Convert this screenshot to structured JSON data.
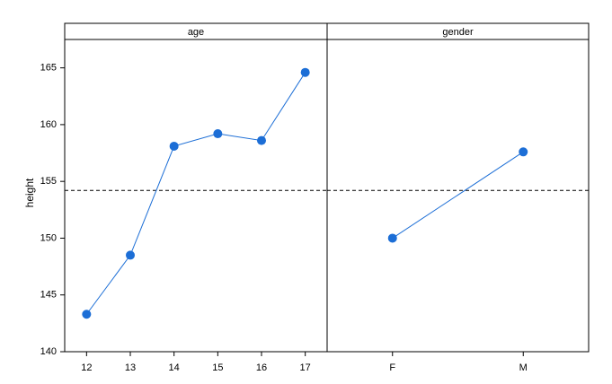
{
  "chart_data": {
    "type": "line",
    "ylabel": "height",
    "ylim": [
      140,
      167.5
    ],
    "yticks": [
      140,
      145,
      150,
      155,
      160,
      165
    ],
    "reference_line": 154.2,
    "color": "#1c6ed6",
    "panels": [
      {
        "title": "age",
        "categories": [
          "12",
          "13",
          "14",
          "15",
          "16",
          "17"
        ],
        "values": [
          143.3,
          148.5,
          158.1,
          159.2,
          158.6,
          164.6
        ]
      },
      {
        "title": "gender",
        "categories": [
          "F",
          "M"
        ],
        "values": [
          150.0,
          157.6
        ]
      }
    ]
  }
}
